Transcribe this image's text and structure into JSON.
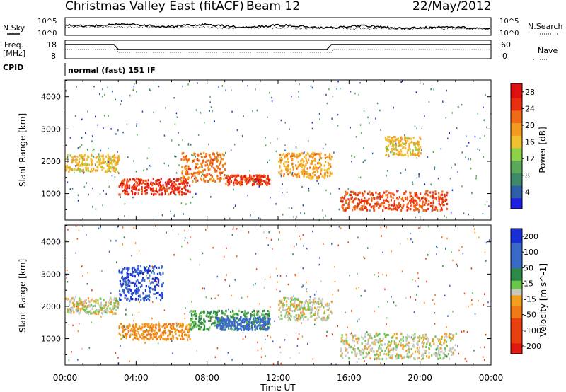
{
  "header": {
    "title": "Christmas Valley East (fitACF)",
    "beam": "Beam 12",
    "date": "22/May/2012"
  },
  "panels": {
    "nsky": {
      "left_label": "N.Sky",
      "right_label": "N.Search",
      "tick_hi": "10^5",
      "tick_lo": "10^0"
    },
    "freq": {
      "left_label_1": "Freq.",
      "left_label_2": "[MHz]",
      "right_label": "Nave",
      "left_ticks": [
        "18",
        "8"
      ],
      "right_ticks": [
        "60",
        "0"
      ]
    },
    "cpid": {
      "left_label": "CPID",
      "mode_text": "normal (fast) 151 IF"
    }
  },
  "colors": {
    "power_scale": [
      "#1f1fe0",
      "#2f5fa8",
      "#3f8a6a",
      "#5aa85a",
      "#8ed24a",
      "#f0c030",
      "#f39a20",
      "#f06a1a",
      "#e83010",
      "#e01010"
    ],
    "velocity_scale": [
      "#1a2fd6",
      "#3a6ac8",
      "#2f8a4a",
      "#6ac64a",
      "#c8c8c0",
      "#c8c8c0",
      "#f0a020",
      "#f07a18",
      "#e84010",
      "#e01a10"
    ]
  },
  "chart_data": [
    {
      "type": "heatmap",
      "name": "power",
      "xlabel": "",
      "ylabel": "Slant Range [km]",
      "x_ticks": [
        "00:00",
        "04:00",
        "08:00",
        "12:00",
        "16:00",
        "20:00",
        "00:00"
      ],
      "xlim_hours": [
        0,
        24
      ],
      "y_ticks": [
        1000,
        2000,
        3000,
        4000
      ],
      "ylim": [
        180,
        4520
      ],
      "colorbar": {
        "label": "Power [dB]",
        "ticks": [
          4,
          8,
          12,
          16,
          20,
          24,
          28
        ],
        "range": [
          0,
          30
        ]
      },
      "features": [
        {
          "t0": 0.0,
          "t1": 3.0,
          "r0": 1700,
          "r1": 2250,
          "power": 17
        },
        {
          "t0": 3.0,
          "t1": 7.0,
          "r0": 1000,
          "r1": 1500,
          "power": 26
        },
        {
          "t0": 6.5,
          "t1": 9.0,
          "r0": 1400,
          "r1": 2300,
          "power": 22
        },
        {
          "t0": 9.0,
          "t1": 11.5,
          "r0": 1300,
          "r1": 1600,
          "power": 25
        },
        {
          "t0": 12.0,
          "t1": 15.0,
          "r0": 1500,
          "r1": 2300,
          "power": 19
        },
        {
          "t0": 15.5,
          "t1": 21.5,
          "r0": 500,
          "r1": 1100,
          "power": 24
        },
        {
          "t0": 18.0,
          "t1": 20.0,
          "r0": 2200,
          "r1": 2800,
          "power": 17
        }
      ]
    },
    {
      "type": "heatmap",
      "name": "velocity",
      "xlabel": "Time UT",
      "ylabel": "Slant Range [km]",
      "x_ticks": [
        "00:00",
        "04:00",
        "08:00",
        "12:00",
        "16:00",
        "20:00",
        "00:00"
      ],
      "xlim_hours": [
        0,
        24
      ],
      "y_ticks": [
        1000,
        2000,
        3000,
        4000
      ],
      "ylim": [
        180,
        4520
      ],
      "colorbar": {
        "label": "Velocity [m s^-1]",
        "ticks": [
          200,
          100,
          50,
          15,
          -15,
          -50,
          -100,
          -200
        ],
        "range": [
          -250,
          250
        ]
      },
      "features": [
        {
          "t0": 0.0,
          "t1": 3.0,
          "r0": 1800,
          "r1": 2300,
          "velocity": 0
        },
        {
          "t0": 3.0,
          "t1": 5.5,
          "r0": 2200,
          "r1": 3300,
          "velocity": 200
        },
        {
          "t0": 3.0,
          "t1": 7.0,
          "r0": 1000,
          "r1": 1500,
          "velocity": -50
        },
        {
          "t0": 7.0,
          "t1": 11.5,
          "r0": 1300,
          "r1": 1900,
          "velocity": 60
        },
        {
          "t0": 8.5,
          "t1": 11.5,
          "r0": 1300,
          "r1": 1700,
          "velocity": 150
        },
        {
          "t0": 12.0,
          "t1": 15.0,
          "r0": 1600,
          "r1": 2300,
          "velocity": 0
        },
        {
          "t0": 15.5,
          "t1": 22.0,
          "r0": 400,
          "r1": 1200,
          "velocity": 0
        }
      ]
    }
  ]
}
